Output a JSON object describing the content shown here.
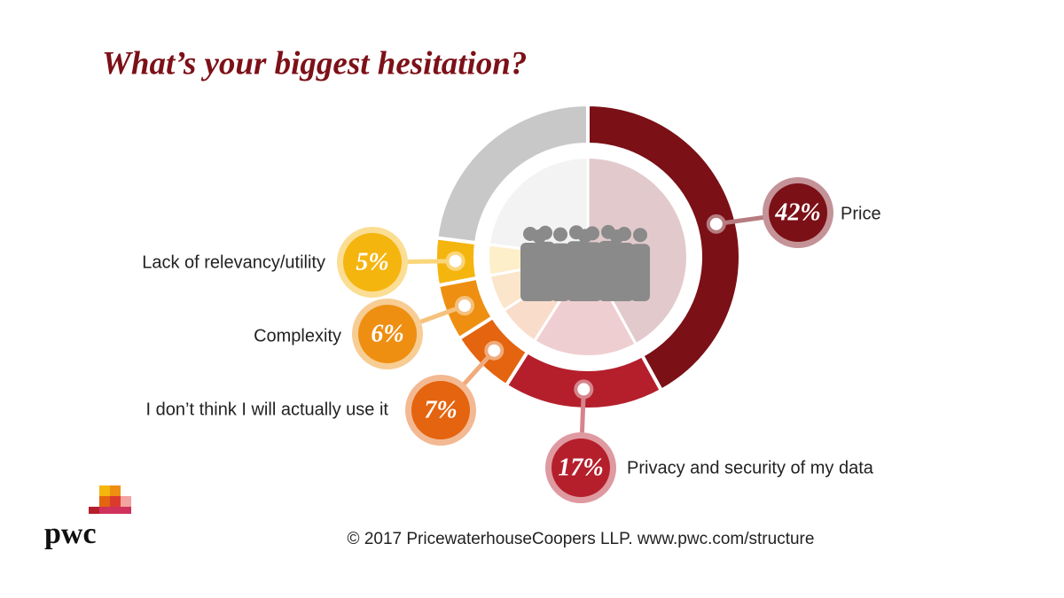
{
  "chart_data": {
    "type": "donut",
    "title": "What’s your biggest hesitation?",
    "categories": [
      "Price",
      "Privacy and security of my data",
      "I don’t think I will actually use it",
      "Complexity",
      "Lack of relevancy/utility",
      null
    ],
    "values": [
      42,
      17,
      7,
      6,
      5,
      23
    ],
    "value_labels": [
      "42%",
      "17%",
      "7%",
      "6%",
      "5%",
      null
    ],
    "colors": [
      "#7b1017",
      "#b51f2c",
      "#e4640f",
      "#ee8f12",
      "#f5b50f",
      "#c8c8c8"
    ]
  },
  "footer": {
    "copyright": "© 2017 PricewaterhouseCoopers LLP.  www.pwc.com/structure",
    "logo": "pwc"
  }
}
